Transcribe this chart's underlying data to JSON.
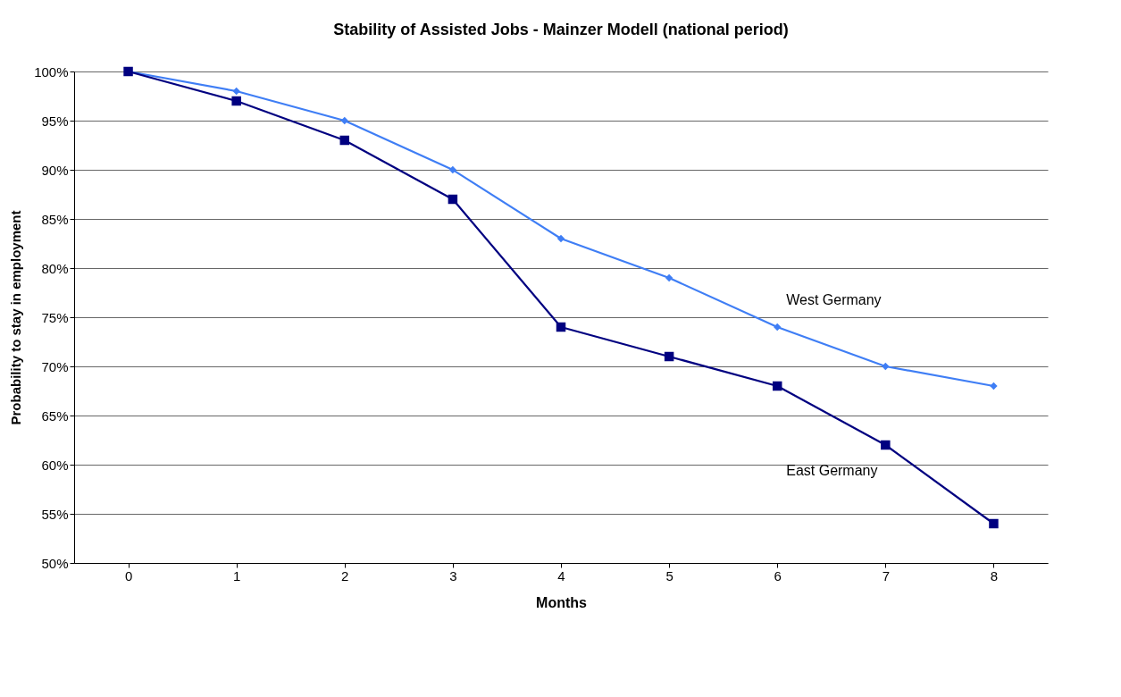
{
  "chart_data": {
    "type": "line",
    "title": "Stability of Assisted Jobs - Mainzer Modell (national period)",
    "xlabel": "Months",
    "ylabel": "Probability to stay in employment",
    "categories": [
      "0",
      "1",
      "2",
      "3",
      "4",
      "5",
      "6",
      "7",
      "8"
    ],
    "series": [
      {
        "name": "West Germany",
        "color": "#3f7ef5",
        "marker": "diamond",
        "values": [
          100,
          98,
          95,
          90,
          83,
          79,
          74,
          70,
          68
        ]
      },
      {
        "name": "East Germany",
        "color": "#000080",
        "marker": "square",
        "values": [
          100,
          97,
          93,
          87,
          74,
          71,
          68,
          62,
          54
        ]
      }
    ],
    "ylim": [
      50,
      100
    ],
    "yticks": [
      {
        "value": 50,
        "label": "50%"
      },
      {
        "value": 55,
        "label": "55%"
      },
      {
        "value": 60,
        "label": "60%"
      },
      {
        "value": 65,
        "label": "65%"
      },
      {
        "value": 70,
        "label": "70%"
      },
      {
        "value": 75,
        "label": "75%"
      },
      {
        "value": 80,
        "label": "80%"
      },
      {
        "value": 85,
        "label": "85%"
      },
      {
        "value": 90,
        "label": "90%"
      },
      {
        "value": 95,
        "label": "95%"
      },
      {
        "value": 100,
        "label": "100%"
      }
    ],
    "grid": "y",
    "legend": false,
    "line_style": "solid"
  }
}
